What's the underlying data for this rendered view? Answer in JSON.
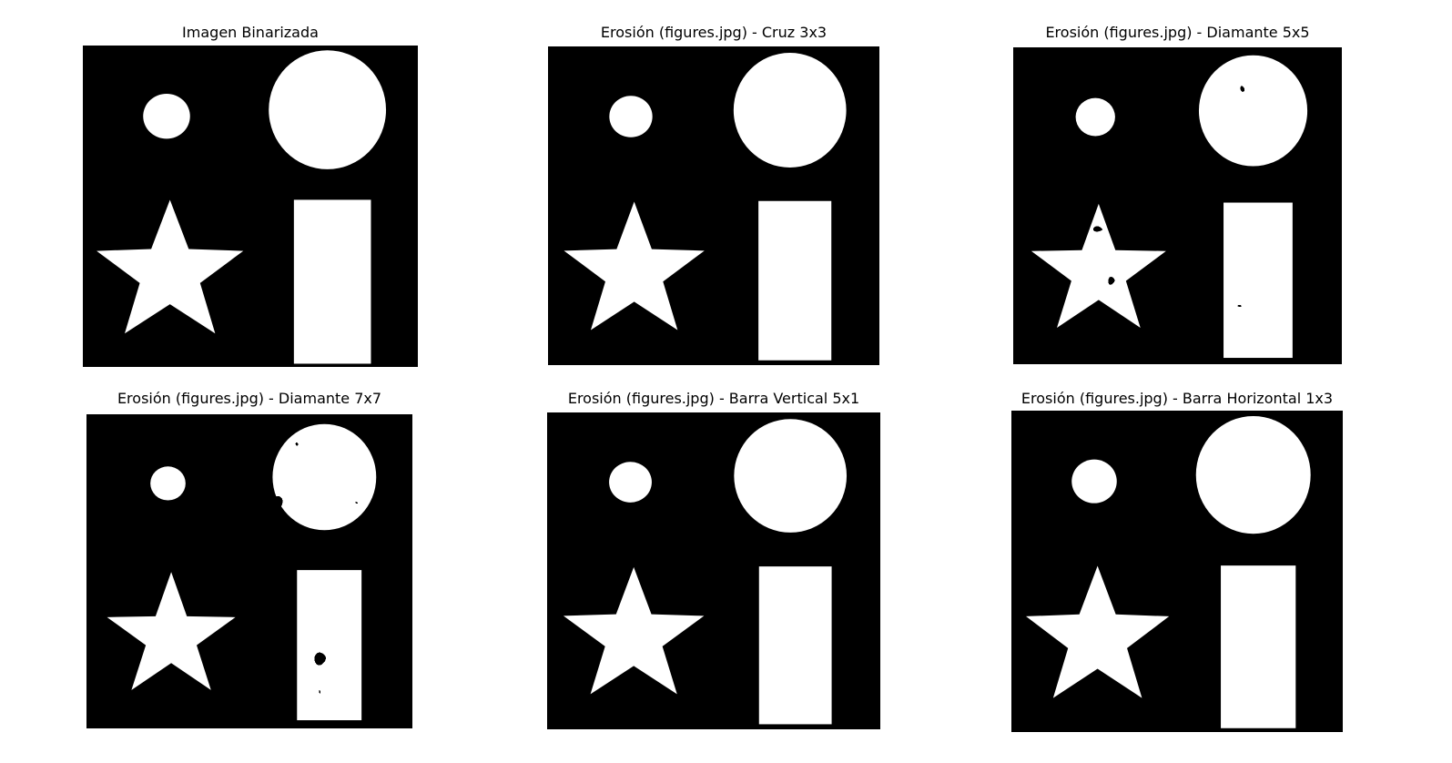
{
  "panels": [
    {
      "title": "Imagen Binarizada",
      "filter": "bin"
    },
    {
      "title": "Erosión (figures.jpg) - Cruz 3x3",
      "filter": "cross"
    },
    {
      "title": "Erosión (figures.jpg) - Diamante 5x5",
      "filter": "dia5"
    },
    {
      "title": "Erosión (figures.jpg) - Diamante 7x7",
      "filter": "dia7"
    },
    {
      "title": "Erosión (figures.jpg) - Barra Vertical 5x1",
      "filter": "vbar"
    },
    {
      "title": "Erosión (figures.jpg) - Barra Horizontal 1x3",
      "filter": "hbar"
    }
  ],
  "colors": {
    "background": "#000000",
    "foreground": "#ffffff"
  }
}
